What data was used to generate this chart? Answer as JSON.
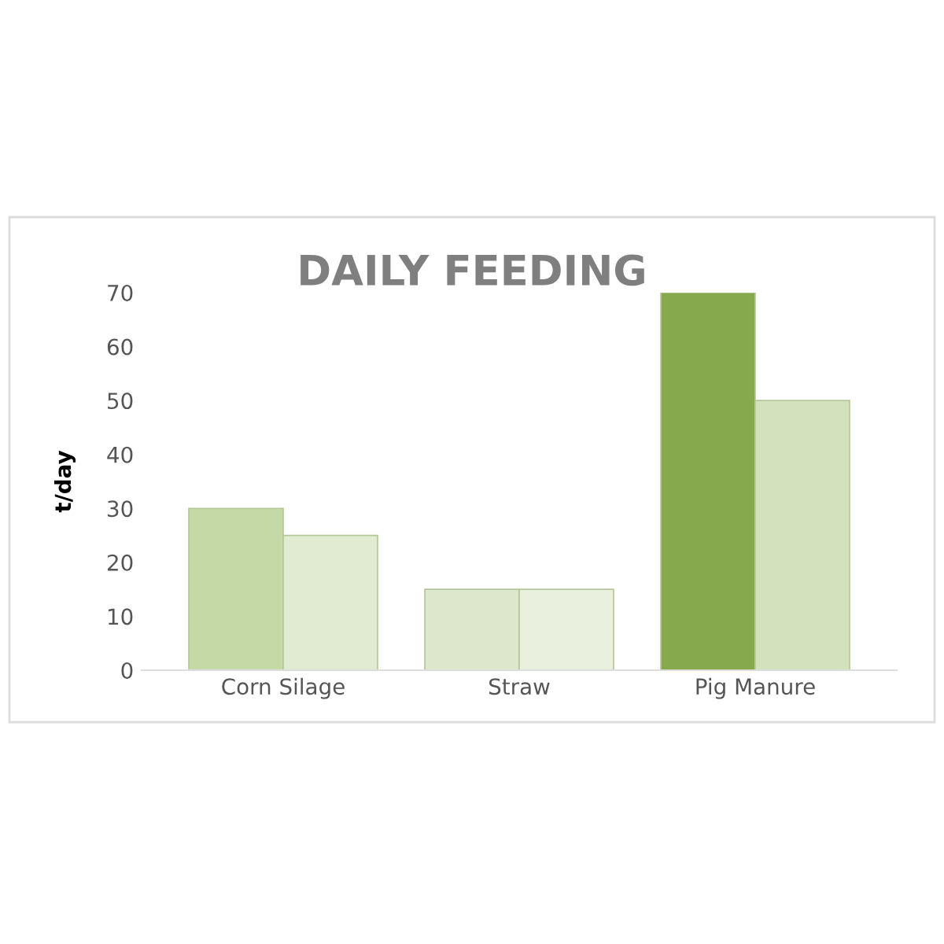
{
  "chart_data": {
    "type": "bar",
    "title": "DAILY FEEDING",
    "ylabel": "t/day",
    "categories": [
      "Corn Silage",
      "Straw",
      "Pig Manure"
    ],
    "series": [
      {
        "colors": [
          "#c5d9a6",
          "#dce7cb",
          "#86a94e"
        ],
        "values": [
          30,
          15,
          70
        ]
      },
      {
        "colors": [
          "#e1ebd2",
          "#e9f0de",
          "#d3e2bd"
        ],
        "values": [
          25,
          15,
          50
        ]
      }
    ],
    "ylim": [
      0,
      70
    ],
    "yticks": [
      0,
      10,
      20,
      30,
      40,
      50,
      60,
      70
    ],
    "grid": false,
    "legend": false
  }
}
